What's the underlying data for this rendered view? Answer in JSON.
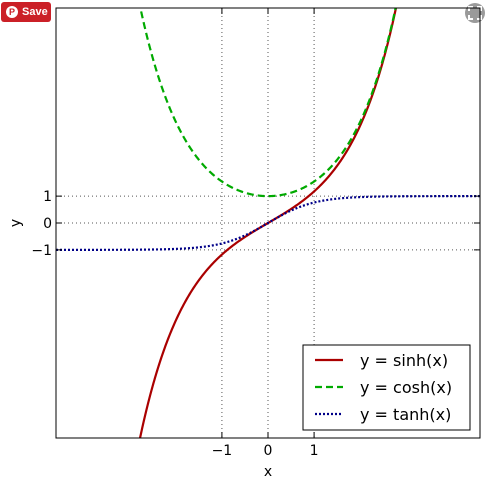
{
  "toolbar": {
    "save_label": "Save",
    "save_color": "#cb2027",
    "pin_icon": "pinterest-icon",
    "expand_icon": "expand-icon"
  },
  "chart_data": {
    "type": "line",
    "xlabel": "x",
    "ylabel": "y",
    "xlim": [
      -4.6,
      4.6
    ],
    "ylim": [
      -8.0,
      8.0
    ],
    "x_ticks": [
      {
        "value": -1,
        "label": "−1"
      },
      {
        "value": 0,
        "label": "0"
      },
      {
        "value": 1,
        "label": "1"
      }
    ],
    "y_ticks": [
      {
        "value": 1,
        "label": "1"
      },
      {
        "value": 0,
        "label": "0"
      },
      {
        "value": -1,
        "label": "−1"
      }
    ],
    "reference_lines": {
      "x": [
        -1,
        0,
        1
      ],
      "y": [
        -1,
        0,
        1
      ],
      "style": "dotted"
    },
    "legend_position": "lower-right",
    "series": [
      {
        "name": "y = sinh(x)",
        "function": "sinh",
        "color": "#aa0000",
        "style": "solid"
      },
      {
        "name": "y = cosh(x)",
        "function": "cosh",
        "color": "#00aa00",
        "style": "dashed"
      },
      {
        "name": "y = tanh(x)",
        "function": "tanh",
        "color": "#000088",
        "style": "dotted"
      }
    ]
  }
}
